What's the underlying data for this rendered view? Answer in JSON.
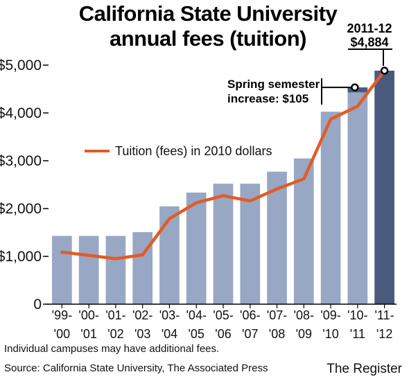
{
  "chart_data": {
    "type": "bar",
    "title_lines": [
      "California State University",
      "annual fees (tuition)"
    ],
    "categories": [
      [
        "'99-",
        "'00"
      ],
      [
        "'00-",
        "'01"
      ],
      [
        "'01-",
        "'02"
      ],
      [
        "'02-",
        "'03"
      ],
      [
        "'03-",
        "'04"
      ],
      [
        "'04-",
        "'05"
      ],
      [
        "'05-",
        "'06"
      ],
      [
        "'06-",
        "'07"
      ],
      [
        "'07-",
        "'08"
      ],
      [
        "'08-",
        "'09"
      ],
      [
        "'09-",
        "'10"
      ],
      [
        "'10-",
        "'11"
      ],
      [
        "'11-",
        "'12"
      ]
    ],
    "series": [
      {
        "type": "bar",
        "values": [
          1428,
          1428,
          1428,
          1506,
          2046,
          2334,
          2520,
          2520,
          2772,
          3048,
          4026,
          4429,
          4884
        ],
        "highlight_last": true
      },
      {
        "type": "line",
        "name": "Tuition (fees) in 2010 dollars",
        "values": [
          1090,
          1020,
          950,
          1030,
          1790,
          2120,
          2270,
          2160,
          2410,
          2620,
          3870,
          4140,
          4884
        ]
      }
    ],
    "spring_increase_top": 4534,
    "ylim": [
      0,
      5000
    ],
    "yticks": [
      "0",
      "$1,000",
      "$2,000",
      "$3,000",
      "$4,000",
      "$5,000"
    ],
    "ytick_values": [
      0,
      1000,
      2000,
      3000,
      4000,
      5000
    ],
    "annotations": {
      "spring": [
        "Spring semester",
        "increase: $105"
      ],
      "callout": [
        "2011-12",
        "$4,884"
      ]
    },
    "legend": "left-middle",
    "colors": {
      "bar": "#98a7c4",
      "bar_highlight": "#4a5a7c",
      "line": "#e35b26"
    }
  },
  "footnote": "Individual campuses may have additional fees.",
  "source": "Source: California State University, The Associated Press",
  "credit": "The Register"
}
